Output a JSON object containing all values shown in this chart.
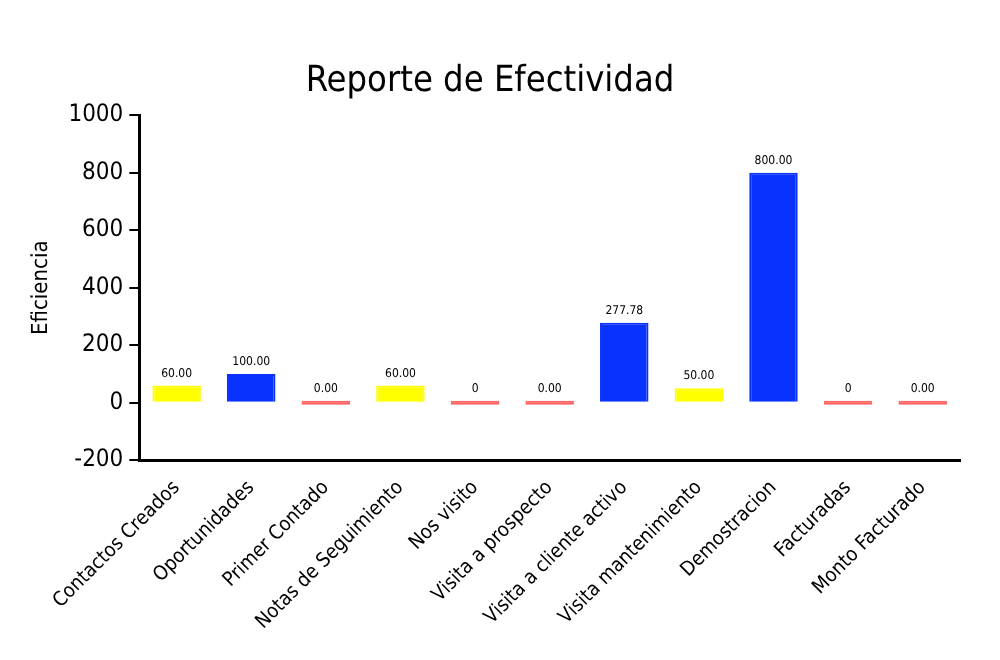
{
  "chart_data": {
    "type": "bar",
    "title": "Reporte de Efectividad",
    "ylabel": "Eficiencia",
    "categories": [
      "Contactos Creados",
      "Oportunidades",
      "Primer Contado",
      "Notas de Seguimiento",
      "Nos visito",
      "Visita a prospecto",
      "Visita a cliente activo",
      "Visita mantenimiento",
      "Demostracion",
      "Facturadas",
      "Monto Facturado"
    ],
    "values": [
      60,
      100,
      0,
      60,
      0,
      0,
      277.78,
      50,
      800,
      0,
      0
    ],
    "colors": [
      "#ffff00",
      "#0a32ff",
      "#ff6060",
      "#ffff00",
      "#ff6060",
      "#ff6060",
      "#0a32ff",
      "#ffff00",
      "#0a32ff",
      "#ff6060",
      "#ff6060"
    ],
    "value_labels": [
      "60.00",
      "100.00",
      "0.00",
      "60.00",
      "0",
      "0.00",
      "277.78",
      "50.00",
      "800.00",
      "0",
      "0.00"
    ],
    "ylim": [
      -200,
      1000
    ],
    "yticks": [
      -200,
      0,
      200,
      400,
      600,
      800,
      1000
    ],
    "grid": false,
    "legend": false
  }
}
